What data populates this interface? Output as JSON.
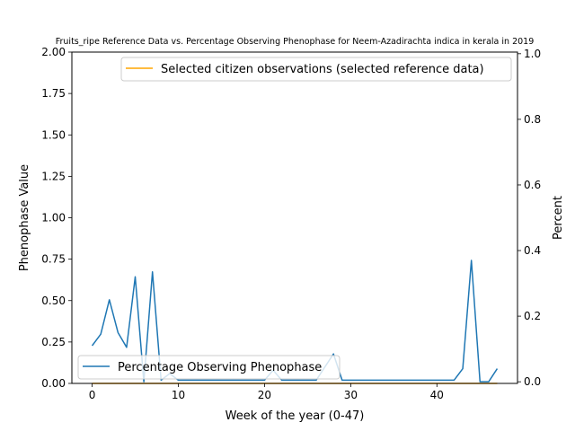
{
  "chart_data": {
    "type": "line",
    "title": "Fruits_ripe Reference Data vs. Percentage Observing Phenophase for Neem-Azadirachta indica in kerala in 2019",
    "xlabel": "Week of the year (0-47)",
    "ylabel_left": "Phenophase Value",
    "ylabel_right": "Percent",
    "xlim": [
      -2.35,
      49.35
    ],
    "ylim_left": [
      0,
      2.0
    ],
    "ylim_right": [
      -0.005,
      1.005
    ],
    "x_ticks": [
      0,
      10,
      20,
      30,
      40
    ],
    "x_tick_labels": [
      "0",
      "10",
      "20",
      "30",
      "40"
    ],
    "y_left_ticks": [
      0.0,
      0.25,
      0.5,
      0.75,
      1.0,
      1.25,
      1.5,
      1.75,
      2.0
    ],
    "y_left_tick_labels": [
      "0.00",
      "0.25",
      "0.50",
      "0.75",
      "1.00",
      "1.25",
      "1.50",
      "1.75",
      "2.00"
    ],
    "y_right_ticks": [
      0.0,
      0.2,
      0.4,
      0.6,
      0.8,
      1.0
    ],
    "y_right_tick_labels": [
      "0.0",
      "0.2",
      "0.4",
      "0.6",
      "0.8",
      "1.0"
    ],
    "grid": false,
    "series": [
      {
        "name": "Selected citizen observations (selected reference data)",
        "axis": "left",
        "color": "#ffa500",
        "x": [
          0,
          47
        ],
        "values": [
          0,
          0
        ],
        "legend_position": "top-right"
      },
      {
        "name": "Percentage Observing Phenophase",
        "axis": "right",
        "color": "#1f77b4",
        "x": [
          0,
          1,
          2,
          3,
          4,
          5,
          6,
          7,
          8,
          9,
          10,
          11,
          12,
          13,
          14,
          15,
          16,
          17,
          18,
          19,
          20,
          21,
          22,
          23,
          24,
          25,
          26,
          27,
          28,
          29,
          30,
          31,
          32,
          33,
          34,
          35,
          36,
          37,
          38,
          39,
          40,
          41,
          42,
          43,
          44,
          45,
          46,
          47
        ],
        "values": [
          0.11,
          0.145,
          0.25,
          0.15,
          0.105,
          0.32,
          0.0,
          0.335,
          0.005,
          0.025,
          0.005,
          0.005,
          0.005,
          0.005,
          0.005,
          0.005,
          0.005,
          0.005,
          0.005,
          0.005,
          0.005,
          0.035,
          0.005,
          0.005,
          0.005,
          0.005,
          0.005,
          0.045,
          0.085,
          0.005,
          0.005,
          0.005,
          0.005,
          0.005,
          0.005,
          0.005,
          0.005,
          0.005,
          0.005,
          0.005,
          0.005,
          0.005,
          0.005,
          0.04,
          0.37,
          0.0,
          0.0,
          0.04
        ],
        "legend_position": "lower-left"
      }
    ]
  }
}
